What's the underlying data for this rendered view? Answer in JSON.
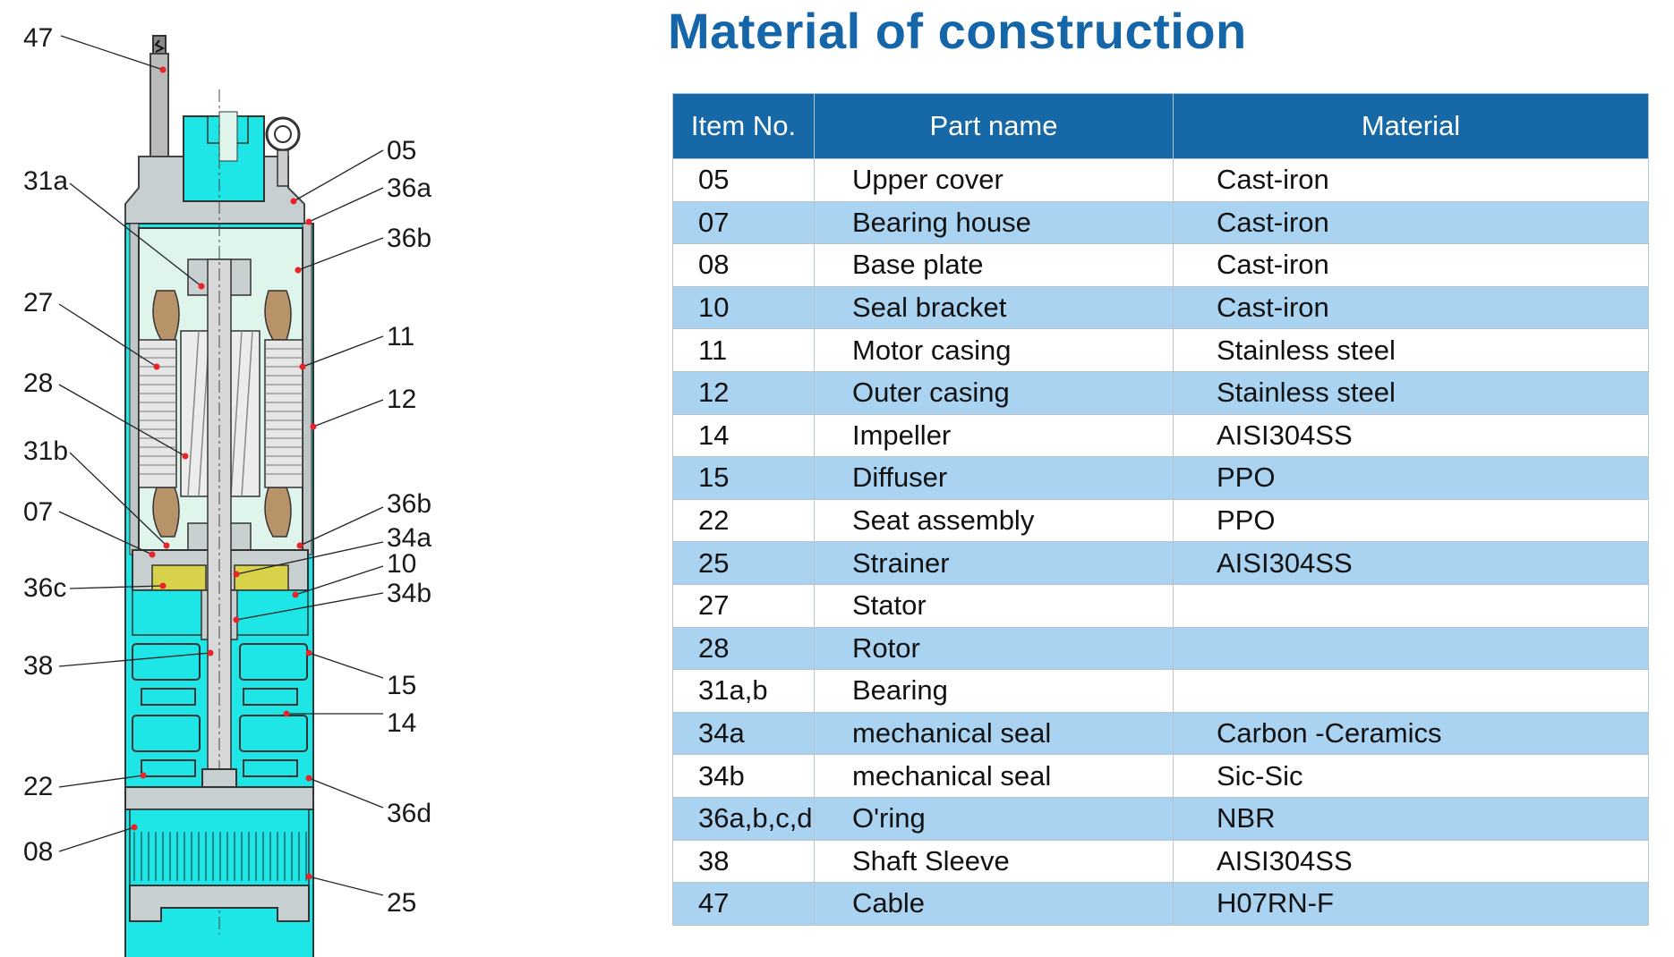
{
  "title": "Material of construction",
  "table": {
    "headers": [
      "Item No.",
      "Part name",
      "Material"
    ],
    "rows": [
      {
        "item": "05",
        "part": "Upper cover",
        "material": "Cast-iron"
      },
      {
        "item": "07",
        "part": "Bearing house",
        "material": "Cast-iron"
      },
      {
        "item": "08",
        "part": "Base plate",
        "material": "Cast-iron"
      },
      {
        "item": "10",
        "part": "Seal bracket",
        "material": "Cast-iron"
      },
      {
        "item": "11",
        "part": "Motor casing",
        "material": "Stainless steel"
      },
      {
        "item": "12",
        "part": "Outer casing",
        "material": "Stainless steel"
      },
      {
        "item": "14",
        "part": "Impeller",
        "material": "AISI304SS"
      },
      {
        "item": "15",
        "part": "Diffuser",
        "material": "PPO"
      },
      {
        "item": "22",
        "part": "Seat assembly",
        "material": "PPO"
      },
      {
        "item": "25",
        "part": "Strainer",
        "material": "AISI304SS"
      },
      {
        "item": "27",
        "part": "Stator",
        "material": ""
      },
      {
        "item": "28",
        "part": "Rotor",
        "material": ""
      },
      {
        "item": "31a,b",
        "part": "Bearing",
        "material": ""
      },
      {
        "item": "34a",
        "part": "mechanical seal",
        "material": "Carbon -Ceramics"
      },
      {
        "item": "34b",
        "part": "mechanical seal",
        "material": "Sic-Sic"
      },
      {
        "item": "36a,b,c,d",
        "part": "O'ring",
        "material": "NBR"
      },
      {
        "item": "38",
        "part": "Shaft Sleeve",
        "material": "AISI304SS"
      },
      {
        "item": "47",
        "part": "Cable",
        "material": "H07RN-F"
      }
    ]
  },
  "diagram": {
    "callouts_left": [
      "47",
      "31a",
      "27",
      "28",
      "31b",
      "07",
      "36c",
      "38",
      "22",
      "08"
    ],
    "callouts_right": [
      "05",
      "36a",
      "36b",
      "11",
      "12",
      "36b",
      "34a",
      "10",
      "34b",
      "15",
      "14",
      "36d",
      "25"
    ]
  },
  "colors": {
    "title": "#1565a9",
    "header_bg": "#1768a6",
    "row_alt": "#a9d3f0",
    "pump_cyan": "#1fe6e6",
    "pump_pale": "#dff5ec",
    "winding_bronze": "#b8936a",
    "seal_yellow": "#d8d24a",
    "marker_red": "#e8232a"
  }
}
